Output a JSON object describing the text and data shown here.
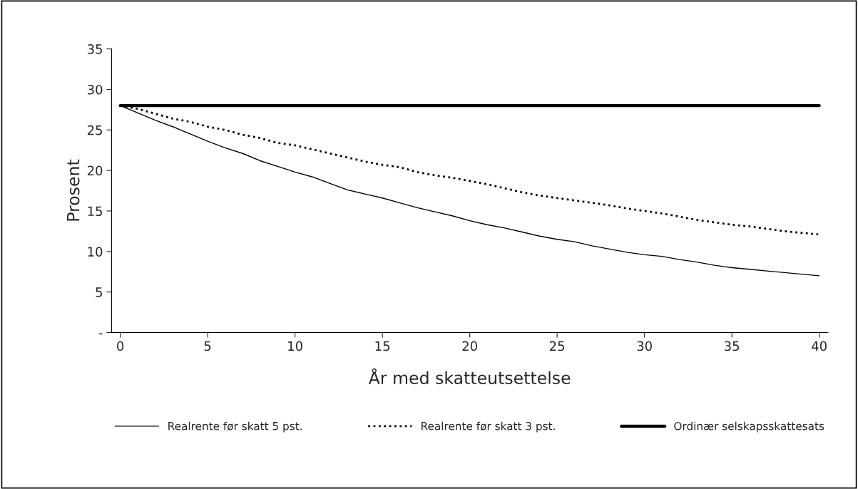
{
  "chart_data": {
    "type": "line",
    "xlabel": "År med skatteutsettelse",
    "ylabel": "Prosent",
    "x": [
      0,
      1,
      2,
      3,
      4,
      5,
      6,
      7,
      8,
      9,
      10,
      11,
      12,
      13,
      14,
      15,
      16,
      17,
      18,
      19,
      20,
      21,
      22,
      23,
      24,
      25,
      26,
      27,
      28,
      29,
      30,
      31,
      32,
      33,
      34,
      35,
      36,
      37,
      38,
      39,
      40
    ],
    "series": [
      {
        "name": "Realrente før skatt 5 pst.",
        "color": "#000000",
        "line_style": "solid",
        "values": [
          28.0,
          27.1,
          26.2,
          25.4,
          24.5,
          23.6,
          22.8,
          22.1,
          21.2,
          20.5,
          19.8,
          19.2,
          18.4,
          17.6,
          17.1,
          16.6,
          16.0,
          15.4,
          14.9,
          14.4,
          13.8,
          13.3,
          12.9,
          12.4,
          11.9,
          11.5,
          11.2,
          10.7,
          10.3,
          9.9,
          9.6,
          9.4,
          9.0,
          8.7,
          8.3,
          8.0,
          7.8,
          7.6,
          7.4,
          7.2,
          7.0
        ]
      },
      {
        "name": "Realrente før skatt 3 pst.",
        "color": "#000000",
        "line_style": "dotted",
        "values": [
          28.0,
          27.6,
          27.0,
          26.4,
          26.0,
          25.4,
          25.0,
          24.4,
          24.0,
          23.4,
          23.1,
          22.6,
          22.1,
          21.6,
          21.1,
          20.7,
          20.4,
          19.8,
          19.4,
          19.1,
          18.7,
          18.3,
          17.8,
          17.3,
          16.9,
          16.6,
          16.3,
          16.0,
          15.7,
          15.3,
          15.0,
          14.7,
          14.3,
          13.9,
          13.6,
          13.3,
          13.1,
          12.8,
          12.5,
          12.3,
          12.1
        ]
      },
      {
        "name": "Ordinær selskapsskattesats",
        "color": "#000000",
        "line_style": "solid",
        "values": [
          28,
          28,
          28,
          28,
          28,
          28,
          28,
          28,
          28,
          28,
          28,
          28,
          28,
          28,
          28,
          28,
          28,
          28,
          28,
          28,
          28,
          28,
          28,
          28,
          28,
          28,
          28,
          28,
          28,
          28,
          28,
          28,
          28,
          28,
          28,
          28,
          28,
          28,
          28,
          28,
          28
        ]
      }
    ],
    "xlim": [
      -0.5,
      40.5
    ],
    "xticks": [
      0,
      5,
      10,
      15,
      20,
      25,
      30,
      35,
      40
    ],
    "ylim": [
      0,
      35
    ],
    "yticks": [
      {
        "value": 0,
        "label": "-"
      },
      5,
      10,
      15,
      20,
      25,
      30,
      35
    ],
    "grid": false,
    "legend": "bottom",
    "marker": "none"
  }
}
